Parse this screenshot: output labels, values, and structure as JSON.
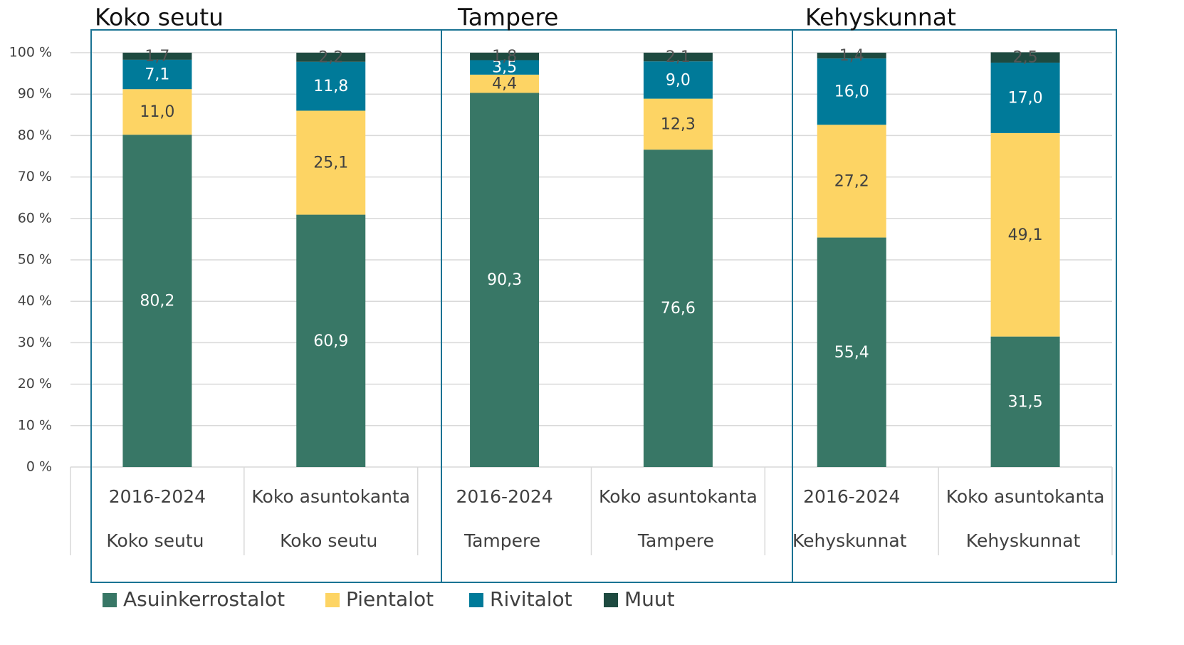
{
  "chart_data": {
    "type": "stacked_bar",
    "groups": [
      "Koko seutu",
      "Tampere",
      "Kehyskunnat"
    ],
    "categories": [
      "2016-2024",
      "Koko asuntokanta",
      "2016-2024",
      "Koko asuntokanta",
      "2016-2024",
      "Koko asuntokanta"
    ],
    "series": [
      {
        "name": "Asuinkerrostalot",
        "color": "#387766",
        "label_color": "#ffffff",
        "values": [
          80.2,
          60.9,
          90.3,
          76.6,
          55.4,
          31.5
        ],
        "value_labels": [
          "80,2",
          "60,9",
          "90,3",
          "76,6",
          "55,4",
          "31,5"
        ]
      },
      {
        "name": "Pientalot",
        "color": "#fdd464",
        "label_color": "#404040",
        "values": [
          11.0,
          25.1,
          4.4,
          12.3,
          27.2,
          49.1
        ],
        "value_labels": [
          "11,0",
          "25,1",
          "4,4",
          "12,3",
          "27,2",
          "49,1"
        ]
      },
      {
        "name": "Rivitalot",
        "color": "#007a99",
        "label_color": "#ffffff",
        "values": [
          7.1,
          11.8,
          3.5,
          9.0,
          16.0,
          17.0
        ],
        "value_labels": [
          "7,1",
          "11,8",
          "3,5",
          "9,0",
          "16,0",
          "17,0"
        ]
      },
      {
        "name": "Muut",
        "color": "#1e4a40",
        "label_color": "#555555",
        "values": [
          1.7,
          2.2,
          1.8,
          2.1,
          1.4,
          2.5
        ],
        "value_labels": [
          "1,7",
          "2,2",
          "1,8",
          "2,1",
          "1,4",
          "2,5"
        ]
      }
    ],
    "ylim": [
      0,
      100
    ],
    "yticks": [
      {
        "value": 0,
        "label": "0 %"
      },
      {
        "value": 10,
        "label": "10 %"
      },
      {
        "value": 20,
        "label": "20 %"
      },
      {
        "value": 30,
        "label": "30 %"
      },
      {
        "value": 40,
        "label": "40 %"
      },
      {
        "value": 50,
        "label": "50 %"
      },
      {
        "value": 60,
        "label": "60 %"
      },
      {
        "value": 70,
        "label": "70 %"
      },
      {
        "value": 80,
        "label": "80 %"
      },
      {
        "value": 90,
        "label": "90 %"
      },
      {
        "value": 100,
        "label": "100 %"
      }
    ],
    "grid": true
  }
}
